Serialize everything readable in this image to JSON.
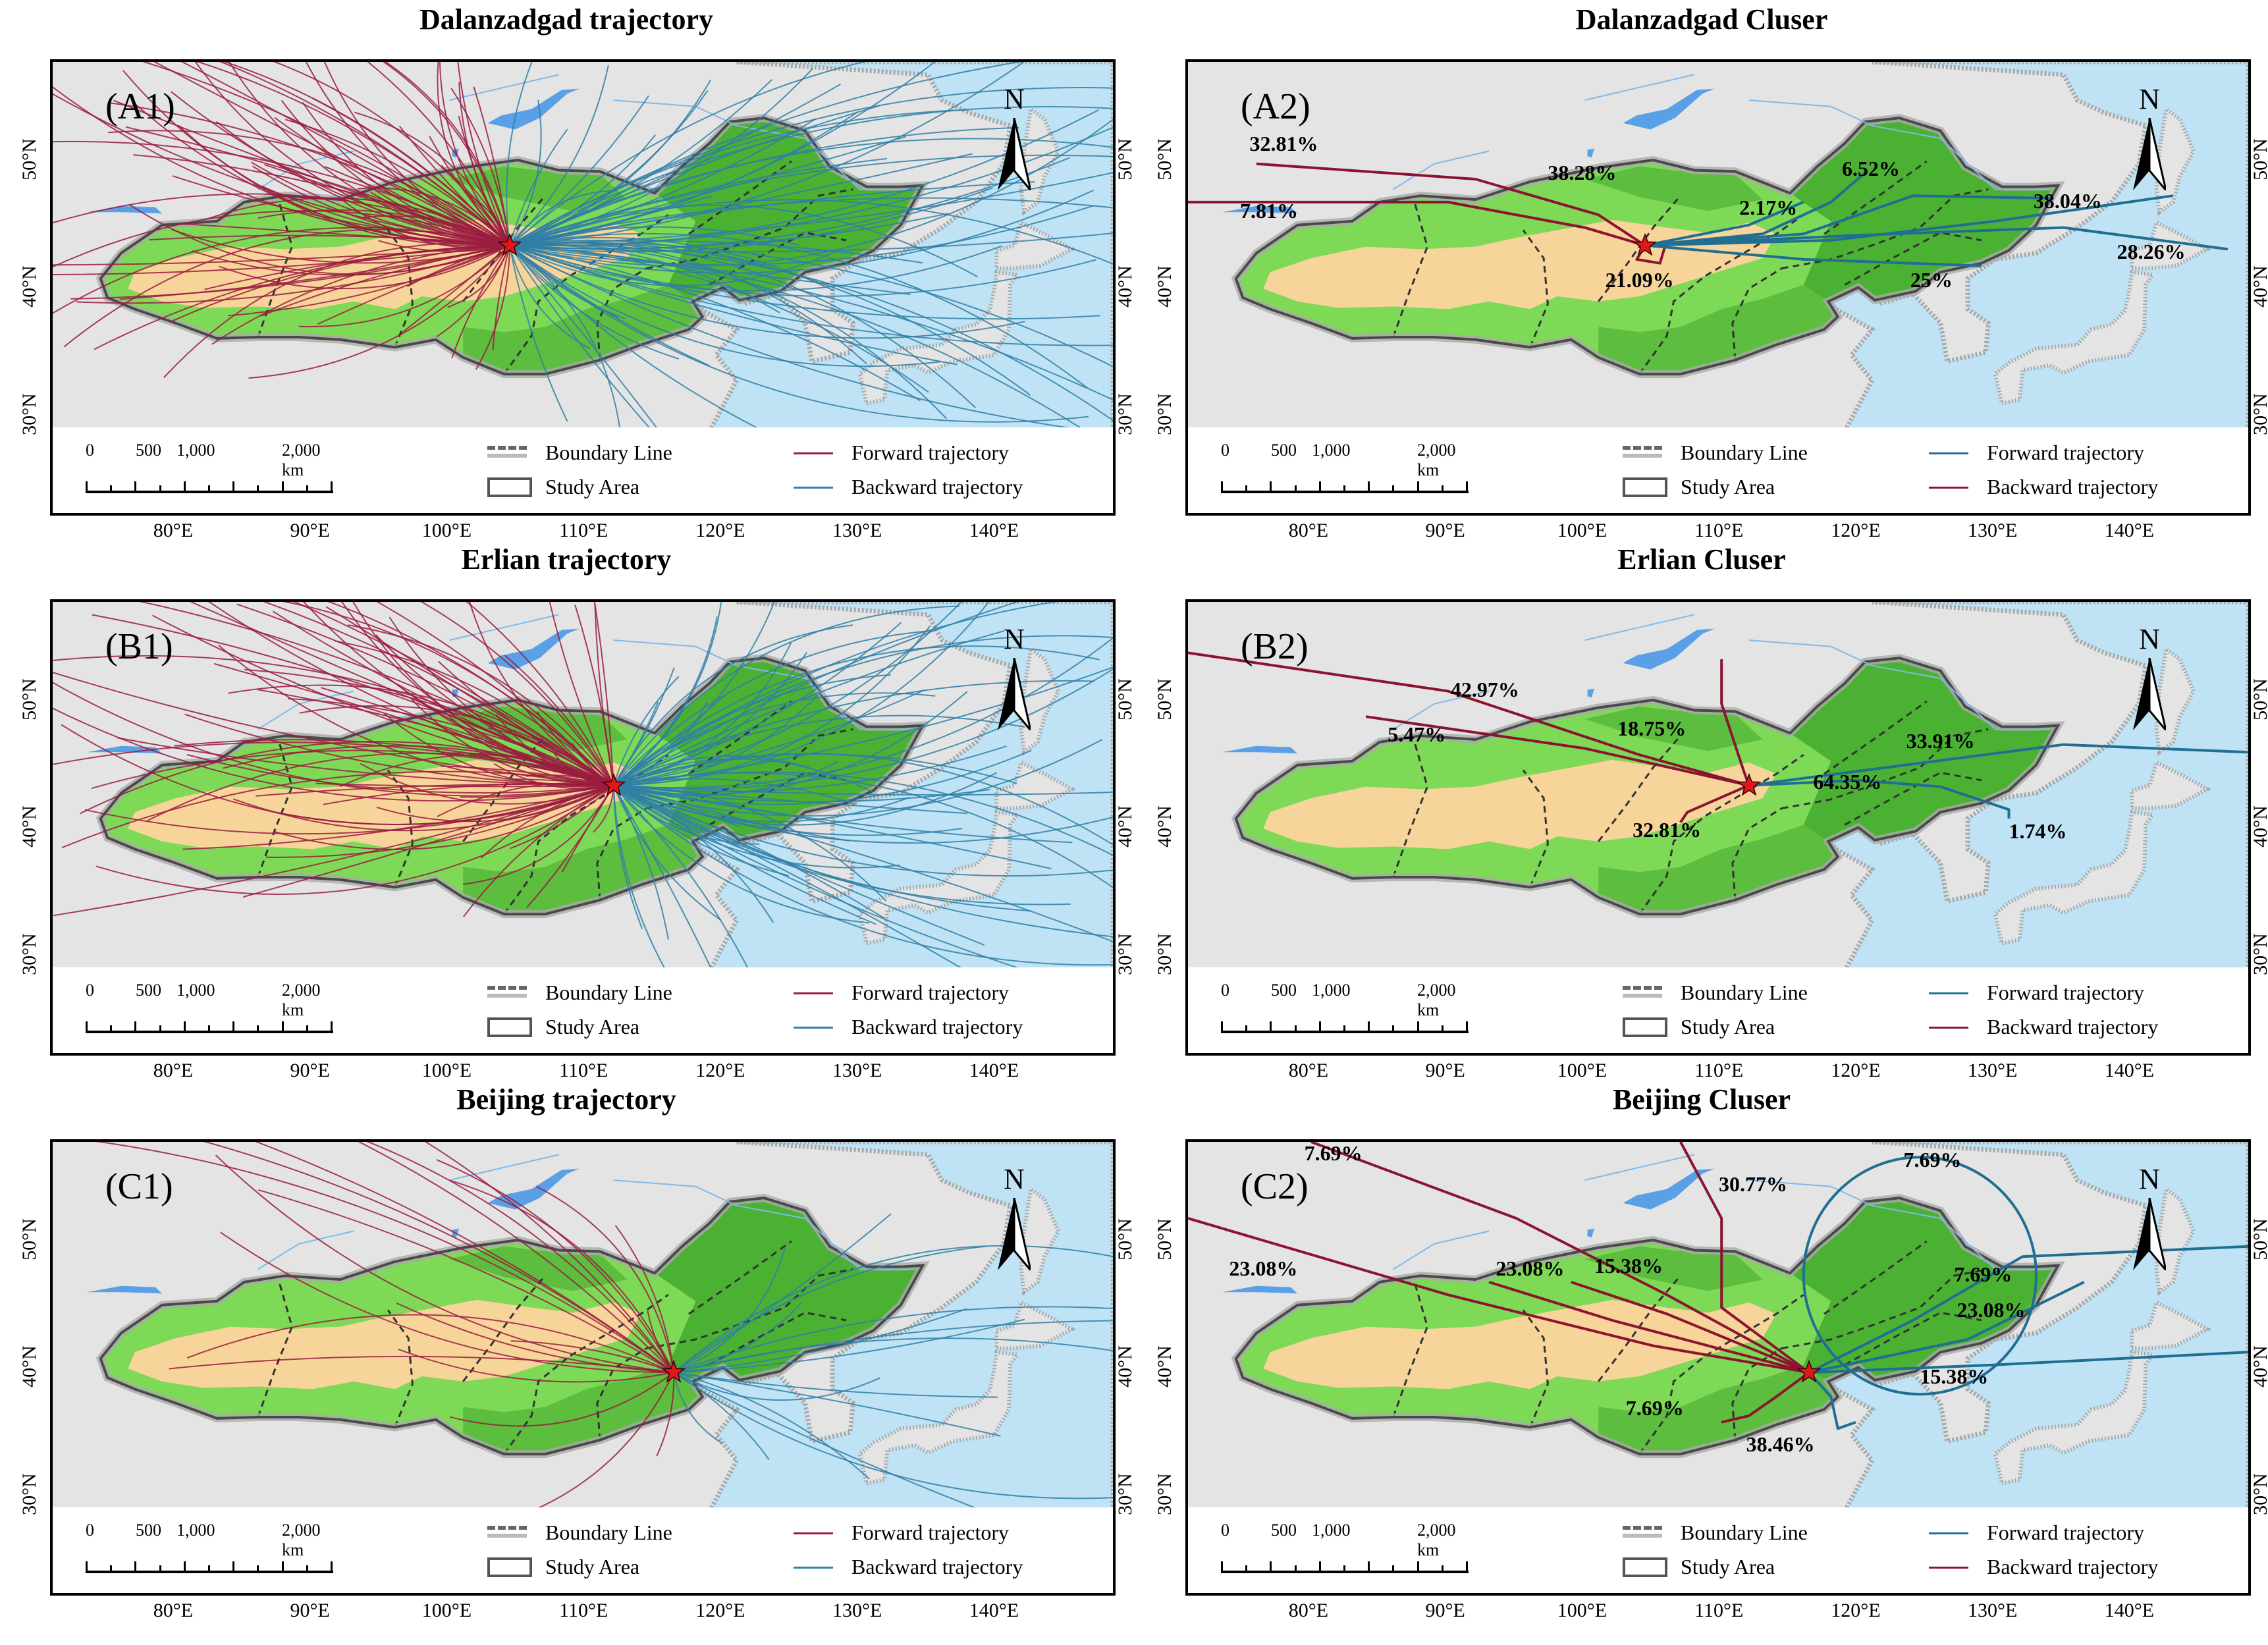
{
  "colors": {
    "sea": "#bfe3f5",
    "land": "#e4e4e4",
    "land_edge": "#a8a8a8",
    "desert": "#f7d49a",
    "green_light": "#7ed957",
    "green_dark": "#3fa62a",
    "boundary_dark": "#4a4a4a",
    "forward_red": "#9a1c3f",
    "backward_blue": "#2f7fa6",
    "cluster_forward": "#1f6f93",
    "cluster_backward": "#8b1530",
    "star": "#e01818"
  },
  "axes": {
    "lat_labels": [
      "50°N",
      "40°N",
      "30°N"
    ],
    "lon_labels": [
      "80°E",
      "90°E",
      "100°E",
      "110°E",
      "120°E",
      "130°E",
      "140°E"
    ]
  },
  "north_label": "N",
  "scale": {
    "labels": [
      "0",
      "500",
      "1,000",
      "2,000 km"
    ]
  },
  "legend": {
    "boundary": "Boundary Line",
    "study": "Study Area"
  },
  "panels": [
    {
      "id": "A1",
      "title": "Dalanzadgad trajectory",
      "label": "(A1)",
      "kind": "trajectory",
      "station": {
        "lon": 104.4,
        "lat": 43.6
      },
      "legend_line1": "Forward trajectory",
      "legend_line1_color": "red",
      "legend_line2": "Backward trajectory",
      "legend_line2_color": "blue",
      "clusters": []
    },
    {
      "id": "A2",
      "title": "Dalanzadgad Cluser",
      "label": "(A2)",
      "kind": "cluster",
      "station": {
        "lon": 104.4,
        "lat": 43.6
      },
      "legend_line1": "Forward trajectory",
      "legend_line1_color": "blue",
      "legend_line2": "Backward trajectory",
      "legend_line2_color": "red",
      "clusters": [
        {
          "text": "32.81%",
          "lon": 75.5,
          "lat": 51.5
        },
        {
          "text": "7.81%",
          "lon": 74.8,
          "lat": 46.2
        },
        {
          "text": "38.28%",
          "lon": 97.3,
          "lat": 49.2
        },
        {
          "text": "21.09%",
          "lon": 101.5,
          "lat": 40.8
        },
        {
          "text": "2.17%",
          "lon": 111.3,
          "lat": 46.5
        },
        {
          "text": "6.52%",
          "lon": 118.8,
          "lat": 49.5
        },
        {
          "text": "38.04%",
          "lon": 132.8,
          "lat": 47.0
        },
        {
          "text": "28.26%",
          "lon": 138.9,
          "lat": 43.0
        },
        {
          "text": "25%",
          "lon": 123.8,
          "lat": 40.8
        }
      ]
    },
    {
      "id": "B1",
      "title": "Erlian trajectory",
      "label": "(B1)",
      "kind": "trajectory",
      "station": {
        "lon": 112.0,
        "lat": 43.6
      },
      "legend_line1": "Forward trajectory",
      "legend_line1_color": "red",
      "legend_line2": "Backward trajectory",
      "legend_line2_color": "blue",
      "clusters": []
    },
    {
      "id": "B2",
      "title": "Erlian Cluser",
      "label": "(B2)",
      "kind": "cluster",
      "station": {
        "lon": 112.0,
        "lat": 43.6
      },
      "legend_line1": "Forward trajectory",
      "legend_line1_color": "blue",
      "legend_line2": "Backward trajectory",
      "legend_line2_color": "red",
      "clusters": [
        {
          "text": "42.97%",
          "lon": 90.2,
          "lat": 51.0
        },
        {
          "text": "5.47%",
          "lon": 85.6,
          "lat": 47.5
        },
        {
          "text": "18.75%",
          "lon": 102.4,
          "lat": 48.0
        },
        {
          "text": "32.81%",
          "lon": 103.5,
          "lat": 40.0
        },
        {
          "text": "33.91%",
          "lon": 123.5,
          "lat": 47.0
        },
        {
          "text": "64.35%",
          "lon": 116.7,
          "lat": 43.8
        },
        {
          "text": "1.74%",
          "lon": 131.0,
          "lat": 39.9
        }
      ]
    },
    {
      "id": "C1",
      "title": "Beijing trajectory",
      "label": "(C1)",
      "kind": "trajectory",
      "station": {
        "lon": 116.4,
        "lat": 39.9
      },
      "legend_line1": "Forward trajectory",
      "legend_line1_color": "red",
      "legend_line2": "Backward trajectory",
      "legend_line2_color": "blue",
      "clusters": []
    },
    {
      "id": "C2",
      "title": "Beijing Cluser",
      "label": "(C2)",
      "kind": "cluster",
      "station": {
        "lon": 116.4,
        "lat": 39.9
      },
      "legend_line1": "Forward trajectory",
      "legend_line1_color": "blue",
      "legend_line2": "Backward trajectory",
      "legend_line2_color": "red",
      "clusters": [
        {
          "text": "7.69%",
          "lon": 79.5,
          "lat": 57.0
        },
        {
          "text": "23.08%",
          "lon": 74.0,
          "lat": 48.0
        },
        {
          "text": "23.08%",
          "lon": 93.5,
          "lat": 48.0
        },
        {
          "text": "15.38%",
          "lon": 100.7,
          "lat": 48.2
        },
        {
          "text": "30.77%",
          "lon": 109.8,
          "lat": 54.6
        },
        {
          "text": "7.69%",
          "lon": 123.3,
          "lat": 56.5
        },
        {
          "text": "7.69%",
          "lon": 127.0,
          "lat": 47.5
        },
        {
          "text": "23.08%",
          "lon": 127.2,
          "lat": 44.7
        },
        {
          "text": "15.38%",
          "lon": 124.5,
          "lat": 39.5
        },
        {
          "text": "7.69%",
          "lon": 103.0,
          "lat": 37.0
        },
        {
          "text": "38.46%",
          "lon": 111.8,
          "lat": 34.2
        }
      ]
    }
  ]
}
